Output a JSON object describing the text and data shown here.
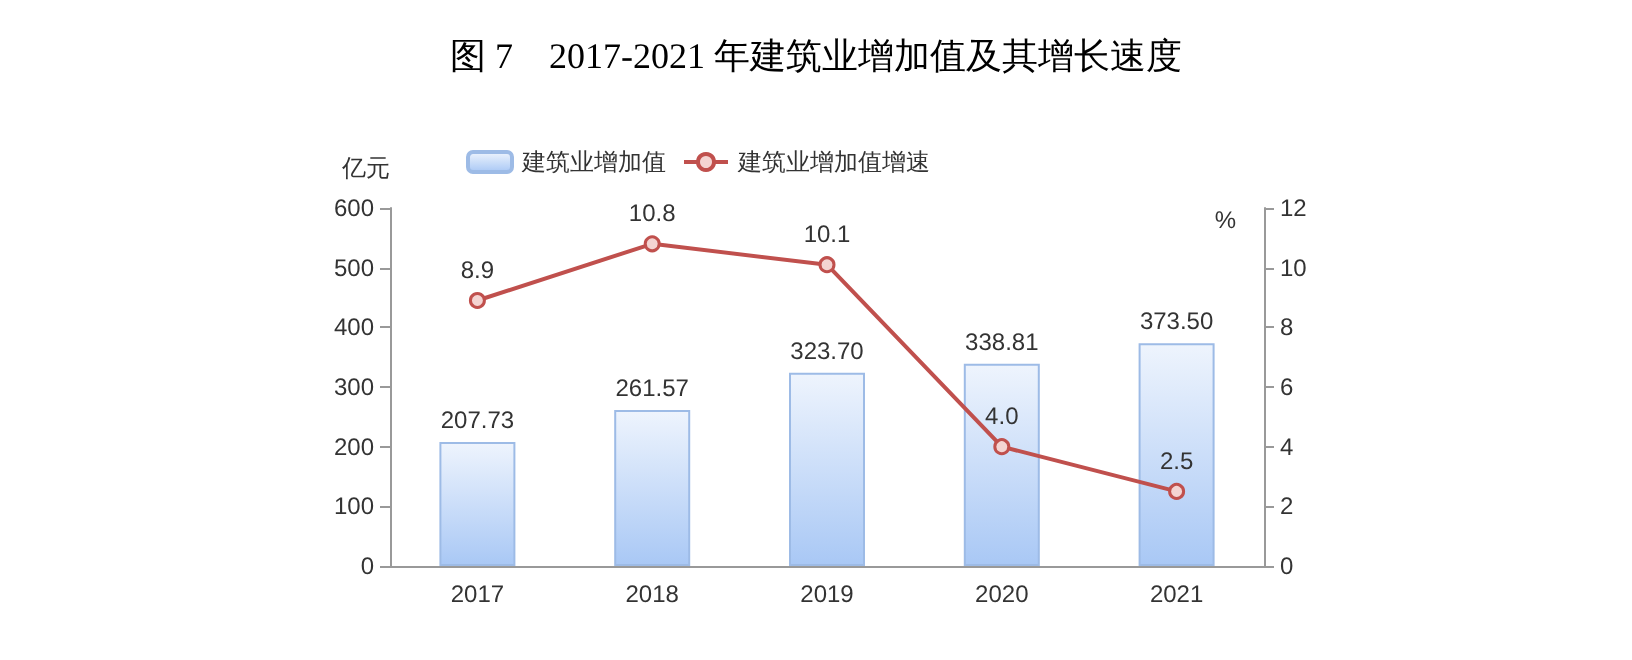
{
  "chart_data": {
    "type": "bar",
    "title": "图 7　2017-2021 年建筑业增加值及其增长速度",
    "ylabel": "亿元",
    "y2label": "%",
    "categories": [
      "2017",
      "2018",
      "2019",
      "2020",
      "2021"
    ],
    "series": [
      {
        "name": "建筑业增加值",
        "color": "#a9c8f5",
        "values": [
          207.73,
          261.57,
          323.7,
          338.81,
          373.5
        ],
        "value_labels": [
          "207.73",
          "261.57",
          "323.70",
          "338.81",
          "373.50"
        ]
      },
      {
        "name": "建筑业增加值增速",
        "type": "line",
        "axis": "y2",
        "color": "#c0504d",
        "marker": "circle",
        "values": [
          8.9,
          10.8,
          10.1,
          4.0,
          2.5
        ],
        "value_labels": [
          "8.9",
          "10.8",
          "10.1",
          "4.0",
          "2.5"
        ]
      }
    ],
    "ylim": [
      0,
      600
    ],
    "yticks": [
      0,
      100,
      200,
      300,
      400,
      500,
      600
    ],
    "y2lim": [
      0,
      12
    ],
    "y2ticks": [
      0,
      2,
      4,
      6,
      8,
      10,
      12
    ],
    "grid": false,
    "legend": "top"
  }
}
